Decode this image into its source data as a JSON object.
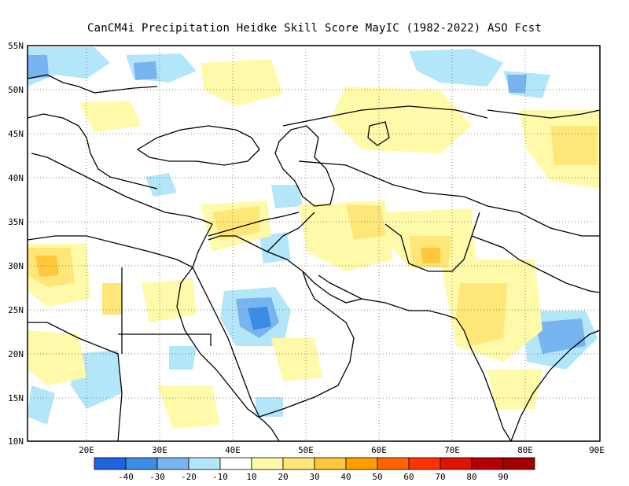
{
  "title": "CanCM4i  Precipitation Heidke Skill Score MayIC (1982-2022) ASO Fcst",
  "map": {
    "lon_range": [
      12,
      90
    ],
    "lat_range": [
      10,
      55
    ],
    "lat_ticks": [
      "55N",
      "50N",
      "45N",
      "40N",
      "35N",
      "30N",
      "25N",
      "20N",
      "15N",
      "10N"
    ],
    "lon_ticks": [
      "20E",
      "30E",
      "40E",
      "50E",
      "60E",
      "70E",
      "80E",
      "90E"
    ],
    "grid_style": "dotted"
  },
  "colorbar": {
    "labels": [
      "-40",
      "-30",
      "-20",
      "-10",
      "10",
      "20",
      "30",
      "40",
      "50",
      "60",
      "70",
      "80",
      "90"
    ],
    "colors": [
      "#1e64dc",
      "#3c8ce6",
      "#78b4f0",
      "#b4e6fa",
      "#ffffff",
      "#fffaaa",
      "#ffe678",
      "#ffc83c",
      "#ffa000",
      "#ff6400",
      "#ff3200",
      "#dc1400",
      "#b40000",
      "#a00000"
    ]
  },
  "anomalies": [
    {
      "name": "europe-north-blue",
      "color": "#b4e6fa"
    },
    {
      "name": "europe-north-dark-blue",
      "color": "#78b4f0"
    },
    {
      "name": "libya-orange",
      "color": "#ffc83c"
    },
    {
      "name": "arabia-blue",
      "color": "#78b4f0"
    },
    {
      "name": "arabia-dark-blue",
      "color": "#3c8ce6"
    },
    {
      "name": "india-yellow",
      "color": "#ffe678"
    },
    {
      "name": "india-blue",
      "color": "#b4e6fa"
    },
    {
      "name": "iran-yellow",
      "color": "#ffe678"
    },
    {
      "name": "pakistan-orange",
      "color": "#ffc83c"
    },
    {
      "name": "mongolia-yellow",
      "color": "#ffe678"
    }
  ]
}
